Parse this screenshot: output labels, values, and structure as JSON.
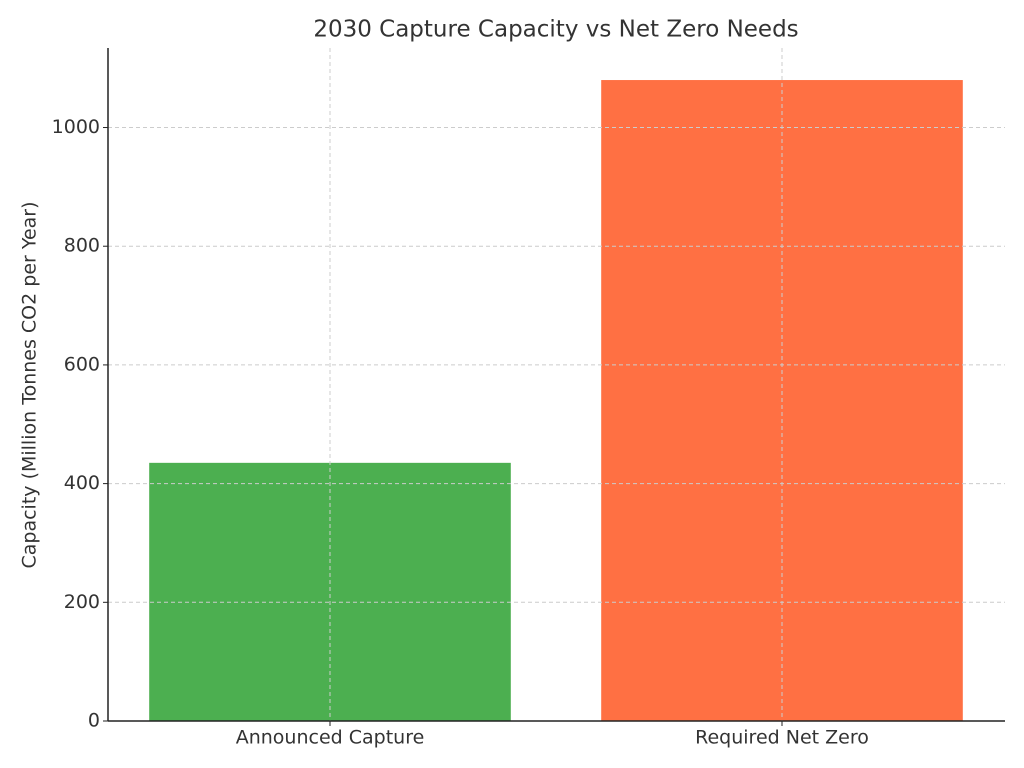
{
  "chart_data": {
    "type": "bar",
    "title": "2030 Capture Capacity vs Net Zero Needs",
    "y_label": "Capacity (Million Tonnes CO2 per Year)",
    "categories": [
      "Announced Capture",
      "Required Net Zero"
    ],
    "values": [
      435,
      1080
    ],
    "colors": [
      "#4caf50",
      "#ff7043"
    ],
    "ylim": [
      0,
      1134
    ],
    "yticks": [
      0,
      200,
      400,
      600,
      800,
      1000
    ],
    "grid": true
  }
}
